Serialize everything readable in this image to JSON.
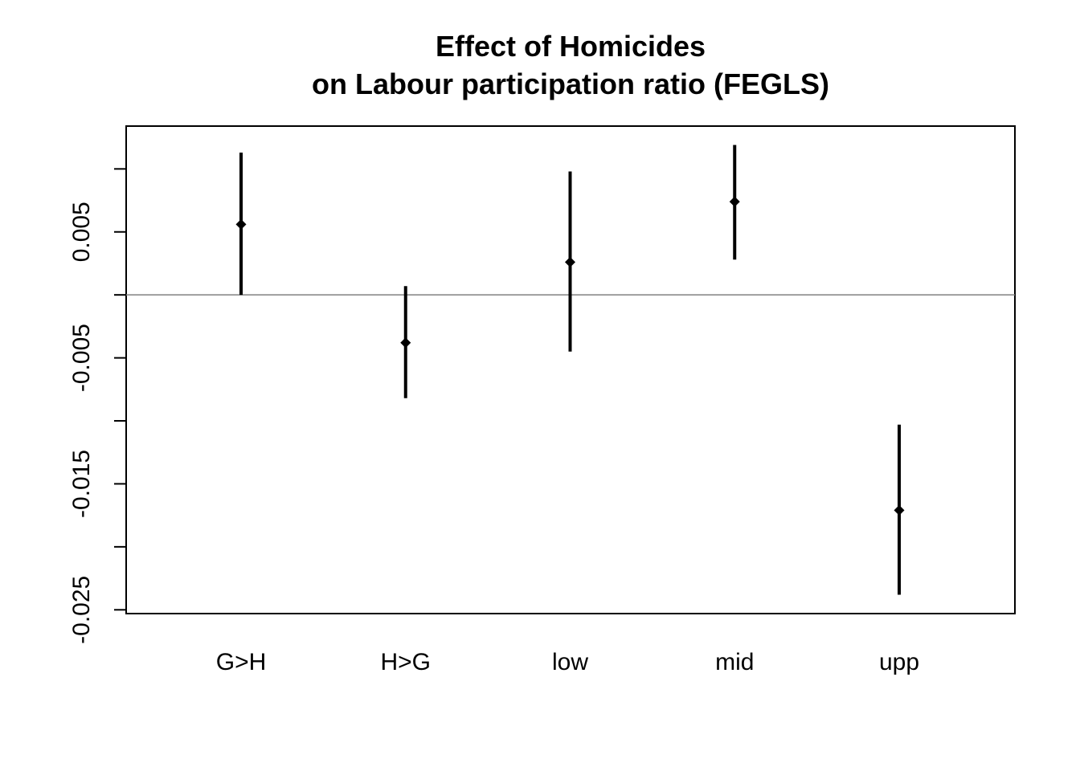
{
  "chart_data": {
    "type": "scatter",
    "title_line1": "Effect of Homicides",
    "title_line2": "on Labour participation ratio (FEGLS)",
    "xlabel": "",
    "ylabel": "",
    "categories": [
      "G>H",
      "H>G",
      "low",
      "mid",
      "upp"
    ],
    "estimate": [
      0.0056,
      -0.0038,
      0.0026,
      0.0074,
      -0.0171
    ],
    "ci_lower": [
      0.0,
      -0.0082,
      -0.0045,
      0.0028,
      -0.0238
    ],
    "ci_upper": [
      0.0113,
      0.0007,
      0.0098,
      0.0119,
      -0.0103
    ],
    "reference_line_y": 0,
    "ylim": [
      -0.0253,
      0.0134
    ],
    "y_ticks": [
      -0.025,
      -0.02,
      -0.015,
      -0.01,
      -0.005,
      0.0,
      0.005,
      0.01
    ],
    "y_tick_labels": [
      "-0.025",
      "-0.015",
      "-0.005",
      "0.005"
    ],
    "y_tick_label_values": [
      -0.025,
      -0.015,
      -0.005,
      0.005
    ],
    "grid": false,
    "legend": "none",
    "colors": {
      "marks": "#000000",
      "reference_line": "#808080",
      "frame": "#000000"
    }
  }
}
